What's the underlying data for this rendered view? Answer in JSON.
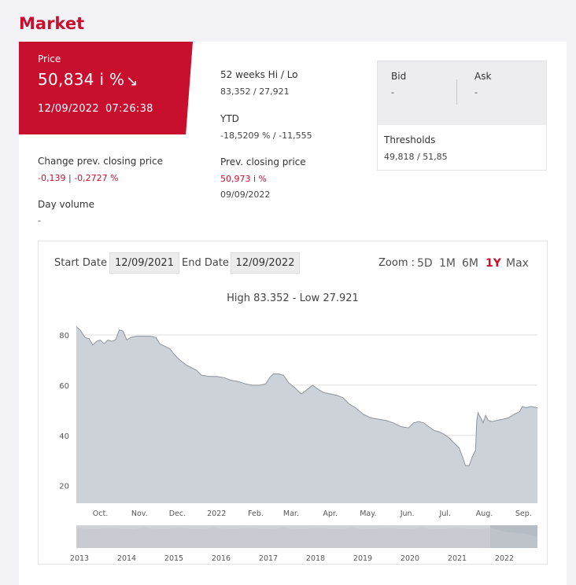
{
  "page": {
    "title": "Market"
  },
  "price": {
    "label": "Price",
    "value": "50,834 i %",
    "arrow": "↘",
    "date": "12/09/2022",
    "time": "07:26:38"
  },
  "change": {
    "label": "Change prev. closing price",
    "abs": "-0,139",
    "sep": "|",
    "pct": "-0,2727 %"
  },
  "day_volume": {
    "label": "Day volume",
    "value": "-"
  },
  "week52": {
    "label": "52 weeks Hi / Lo",
    "value": "83,352 / 27,921"
  },
  "ytd": {
    "label": "YTD",
    "value": "-18,5209 % / -11,555"
  },
  "prev_close": {
    "label": "Prev. closing price",
    "value": "50,973 i %",
    "date": "09/09/2022"
  },
  "bid": {
    "label": "Bid",
    "value": "-"
  },
  "ask": {
    "label": "Ask",
    "value": "-"
  },
  "thresholds": {
    "label": "Thresholds",
    "value": "49,818 / 51,85"
  },
  "chart_controls": {
    "start_label": "Start Date",
    "start_value": "12/09/2021",
    "end_label": "End Date",
    "end_value": "12/09/2022",
    "zoom_label": "Zoom :",
    "zoom_options": [
      "5D",
      "1M",
      "6M",
      "1Y",
      "Max"
    ],
    "zoom_active": "1Y"
  },
  "chart_data": {
    "type": "area",
    "title": "High 83.352 - Low 27.921",
    "ylim": [
      13,
      85
    ],
    "yticks": [
      20,
      40,
      60,
      80
    ],
    "x_start": "2021-09-12",
    "x_end": "2022-09-12",
    "xticks": [
      {
        "label": "Oct.",
        "date": "2021-10-01"
      },
      {
        "label": "Nov.",
        "date": "2021-11-01"
      },
      {
        "label": "Dec.",
        "date": "2021-12-01"
      },
      {
        "label": "2022",
        "date": "2022-01-01"
      },
      {
        "label": "Feb.",
        "date": "2022-02-01"
      },
      {
        "label": "Mar.",
        "date": "2022-03-01"
      },
      {
        "label": "Apr.",
        "date": "2022-04-01"
      },
      {
        "label": "May.",
        "date": "2022-05-01"
      },
      {
        "label": "Jun.",
        "date": "2022-06-01"
      },
      {
        "label": "Jul.",
        "date": "2022-07-01"
      },
      {
        "label": "Aug.",
        "date": "2022-08-01"
      },
      {
        "label": "Sep.",
        "date": "2022-09-01"
      }
    ],
    "series": [
      {
        "values": [
          [
            "2021-09-12",
            83.3
          ],
          [
            "2021-09-15",
            82
          ],
          [
            "2021-09-19",
            79
          ],
          [
            "2021-09-22",
            78.5
          ],
          [
            "2021-09-25",
            76
          ],
          [
            "2021-09-28",
            77.5
          ],
          [
            "2021-10-01",
            78
          ],
          [
            "2021-10-04",
            76.5
          ],
          [
            "2021-10-07",
            78
          ],
          [
            "2021-10-10",
            77.5
          ],
          [
            "2021-10-13",
            78
          ],
          [
            "2021-10-16",
            82
          ],
          [
            "2021-10-19",
            81.5
          ],
          [
            "2021-10-22",
            78
          ],
          [
            "2021-10-25",
            79
          ],
          [
            "2021-10-29",
            79.5
          ],
          [
            "2021-11-02",
            79.5
          ],
          [
            "2021-11-06",
            79.5
          ],
          [
            "2021-11-10",
            79.5
          ],
          [
            "2021-11-14",
            79
          ],
          [
            "2021-11-17",
            76.5
          ],
          [
            "2021-11-21",
            75.5
          ],
          [
            "2021-11-25",
            74.5
          ],
          [
            "2021-11-29",
            72
          ],
          [
            "2021-12-03",
            70
          ],
          [
            "2021-12-08",
            68
          ],
          [
            "2021-12-12",
            67
          ],
          [
            "2021-12-16",
            66
          ],
          [
            "2021-12-20",
            64
          ],
          [
            "2021-12-26",
            63.5
          ],
          [
            "2022-01-01",
            63.5
          ],
          [
            "2022-01-07",
            63
          ],
          [
            "2022-01-12",
            62
          ],
          [
            "2022-01-18",
            61.5
          ],
          [
            "2022-01-24",
            60.5
          ],
          [
            "2022-01-29",
            60
          ],
          [
            "2022-02-04",
            60
          ],
          [
            "2022-02-09",
            60.5
          ],
          [
            "2022-02-12",
            63
          ],
          [
            "2022-02-15",
            64.5
          ],
          [
            "2022-02-19",
            64.5
          ],
          [
            "2022-02-23",
            64
          ],
          [
            "2022-02-27",
            61
          ],
          [
            "2022-03-04",
            59
          ],
          [
            "2022-03-09",
            56.5
          ],
          [
            "2022-03-13",
            58
          ],
          [
            "2022-03-18",
            60
          ],
          [
            "2022-03-22",
            58.5
          ],
          [
            "2022-03-27",
            57
          ],
          [
            "2022-04-01",
            56.5
          ],
          [
            "2022-04-06",
            56
          ],
          [
            "2022-04-11",
            55
          ],
          [
            "2022-04-16",
            52.5
          ],
          [
            "2022-04-21",
            51
          ],
          [
            "2022-04-27",
            48.5
          ],
          [
            "2022-05-03",
            47
          ],
          [
            "2022-05-09",
            46.5
          ],
          [
            "2022-05-15",
            46
          ],
          [
            "2022-05-21",
            45
          ],
          [
            "2022-05-27",
            43.5
          ],
          [
            "2022-06-02",
            43
          ],
          [
            "2022-06-06",
            45
          ],
          [
            "2022-06-10",
            45.5
          ],
          [
            "2022-06-14",
            45
          ],
          [
            "2022-06-18",
            43.5
          ],
          [
            "2022-06-22",
            42
          ],
          [
            "2022-06-26",
            41.5
          ],
          [
            "2022-06-30",
            40.5
          ],
          [
            "2022-07-04",
            39
          ],
          [
            "2022-07-08",
            37
          ],
          [
            "2022-07-12",
            35
          ],
          [
            "2022-07-15",
            31
          ],
          [
            "2022-07-17",
            28
          ],
          [
            "2022-07-20",
            28
          ],
          [
            "2022-07-22",
            31
          ],
          [
            "2022-07-25",
            34
          ],
          [
            "2022-07-26",
            46
          ],
          [
            "2022-07-27",
            49
          ],
          [
            "2022-07-29",
            47
          ],
          [
            "2022-07-31",
            45
          ],
          [
            "2022-08-02",
            48
          ],
          [
            "2022-08-04",
            46
          ],
          [
            "2022-08-07",
            45.5
          ],
          [
            "2022-08-11",
            46
          ],
          [
            "2022-08-16",
            46.5
          ],
          [
            "2022-08-20",
            47
          ],
          [
            "2022-08-25",
            48.5
          ],
          [
            "2022-08-29",
            49.5
          ],
          [
            "2022-08-31",
            51.5
          ],
          [
            "2022-09-03",
            51
          ],
          [
            "2022-09-07",
            51.5
          ],
          [
            "2022-09-12",
            51
          ]
        ]
      }
    ],
    "navigator": {
      "xticks": [
        "2013",
        "2014",
        "2015",
        "2016",
        "2017",
        "2018",
        "2019",
        "2020",
        "2021",
        "2022"
      ]
    },
    "colors": {
      "fill": "#cdd2d8",
      "line": "#8e949b",
      "grid": "#dddddd",
      "nav_fill": "#cfd3d8",
      "nav_selected": "#b6bcc3"
    }
  }
}
